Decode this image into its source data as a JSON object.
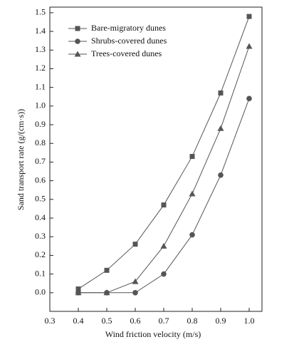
{
  "chart_data": {
    "type": "line",
    "x_label": "Wind friction velocity (m/s)",
    "y_label": "Sand transport rate (g/(cm·s))",
    "x": [
      0.4,
      0.5,
      0.6,
      0.7,
      0.8,
      0.9,
      1.0
    ],
    "series": [
      {
        "name": "Bare-migratory dunes",
        "color": "#555555",
        "marker": "square",
        "values": [
          0.02,
          0.12,
          0.26,
          0.47,
          0.73,
          1.07,
          1.48
        ]
      },
      {
        "name": "Shrubs-covered dunes",
        "color": "#555555",
        "marker": "circle",
        "values": [
          0,
          0,
          0,
          0.1,
          0.31,
          0.63,
          1.04
        ]
      },
      {
        "name": "Trees-covered dunes",
        "color": "#555555",
        "marker": "triangle",
        "values": [
          0,
          0,
          0.06,
          0.25,
          0.53,
          0.88,
          1.32
        ]
      }
    ],
    "xlim": [
      0.3,
      1.045
    ],
    "ylim": [
      -0.1,
      1.53
    ],
    "xticks": [
      0.3,
      0.4,
      0.5,
      0.6,
      0.7,
      0.8,
      0.9,
      {
        "value": 1,
        "label": "1.0"
      }
    ],
    "yticks": [
      {
        "value": 0,
        "label": "0.0"
      },
      0.1,
      0.2,
      0.3,
      0.4,
      0.5,
      0.6,
      0.7,
      0.8,
      0.9,
      {
        "value": 1,
        "label": "1.0"
      },
      1.1,
      1.2,
      1.3,
      1.4,
      1.5
    ],
    "legend": "upper-left"
  }
}
